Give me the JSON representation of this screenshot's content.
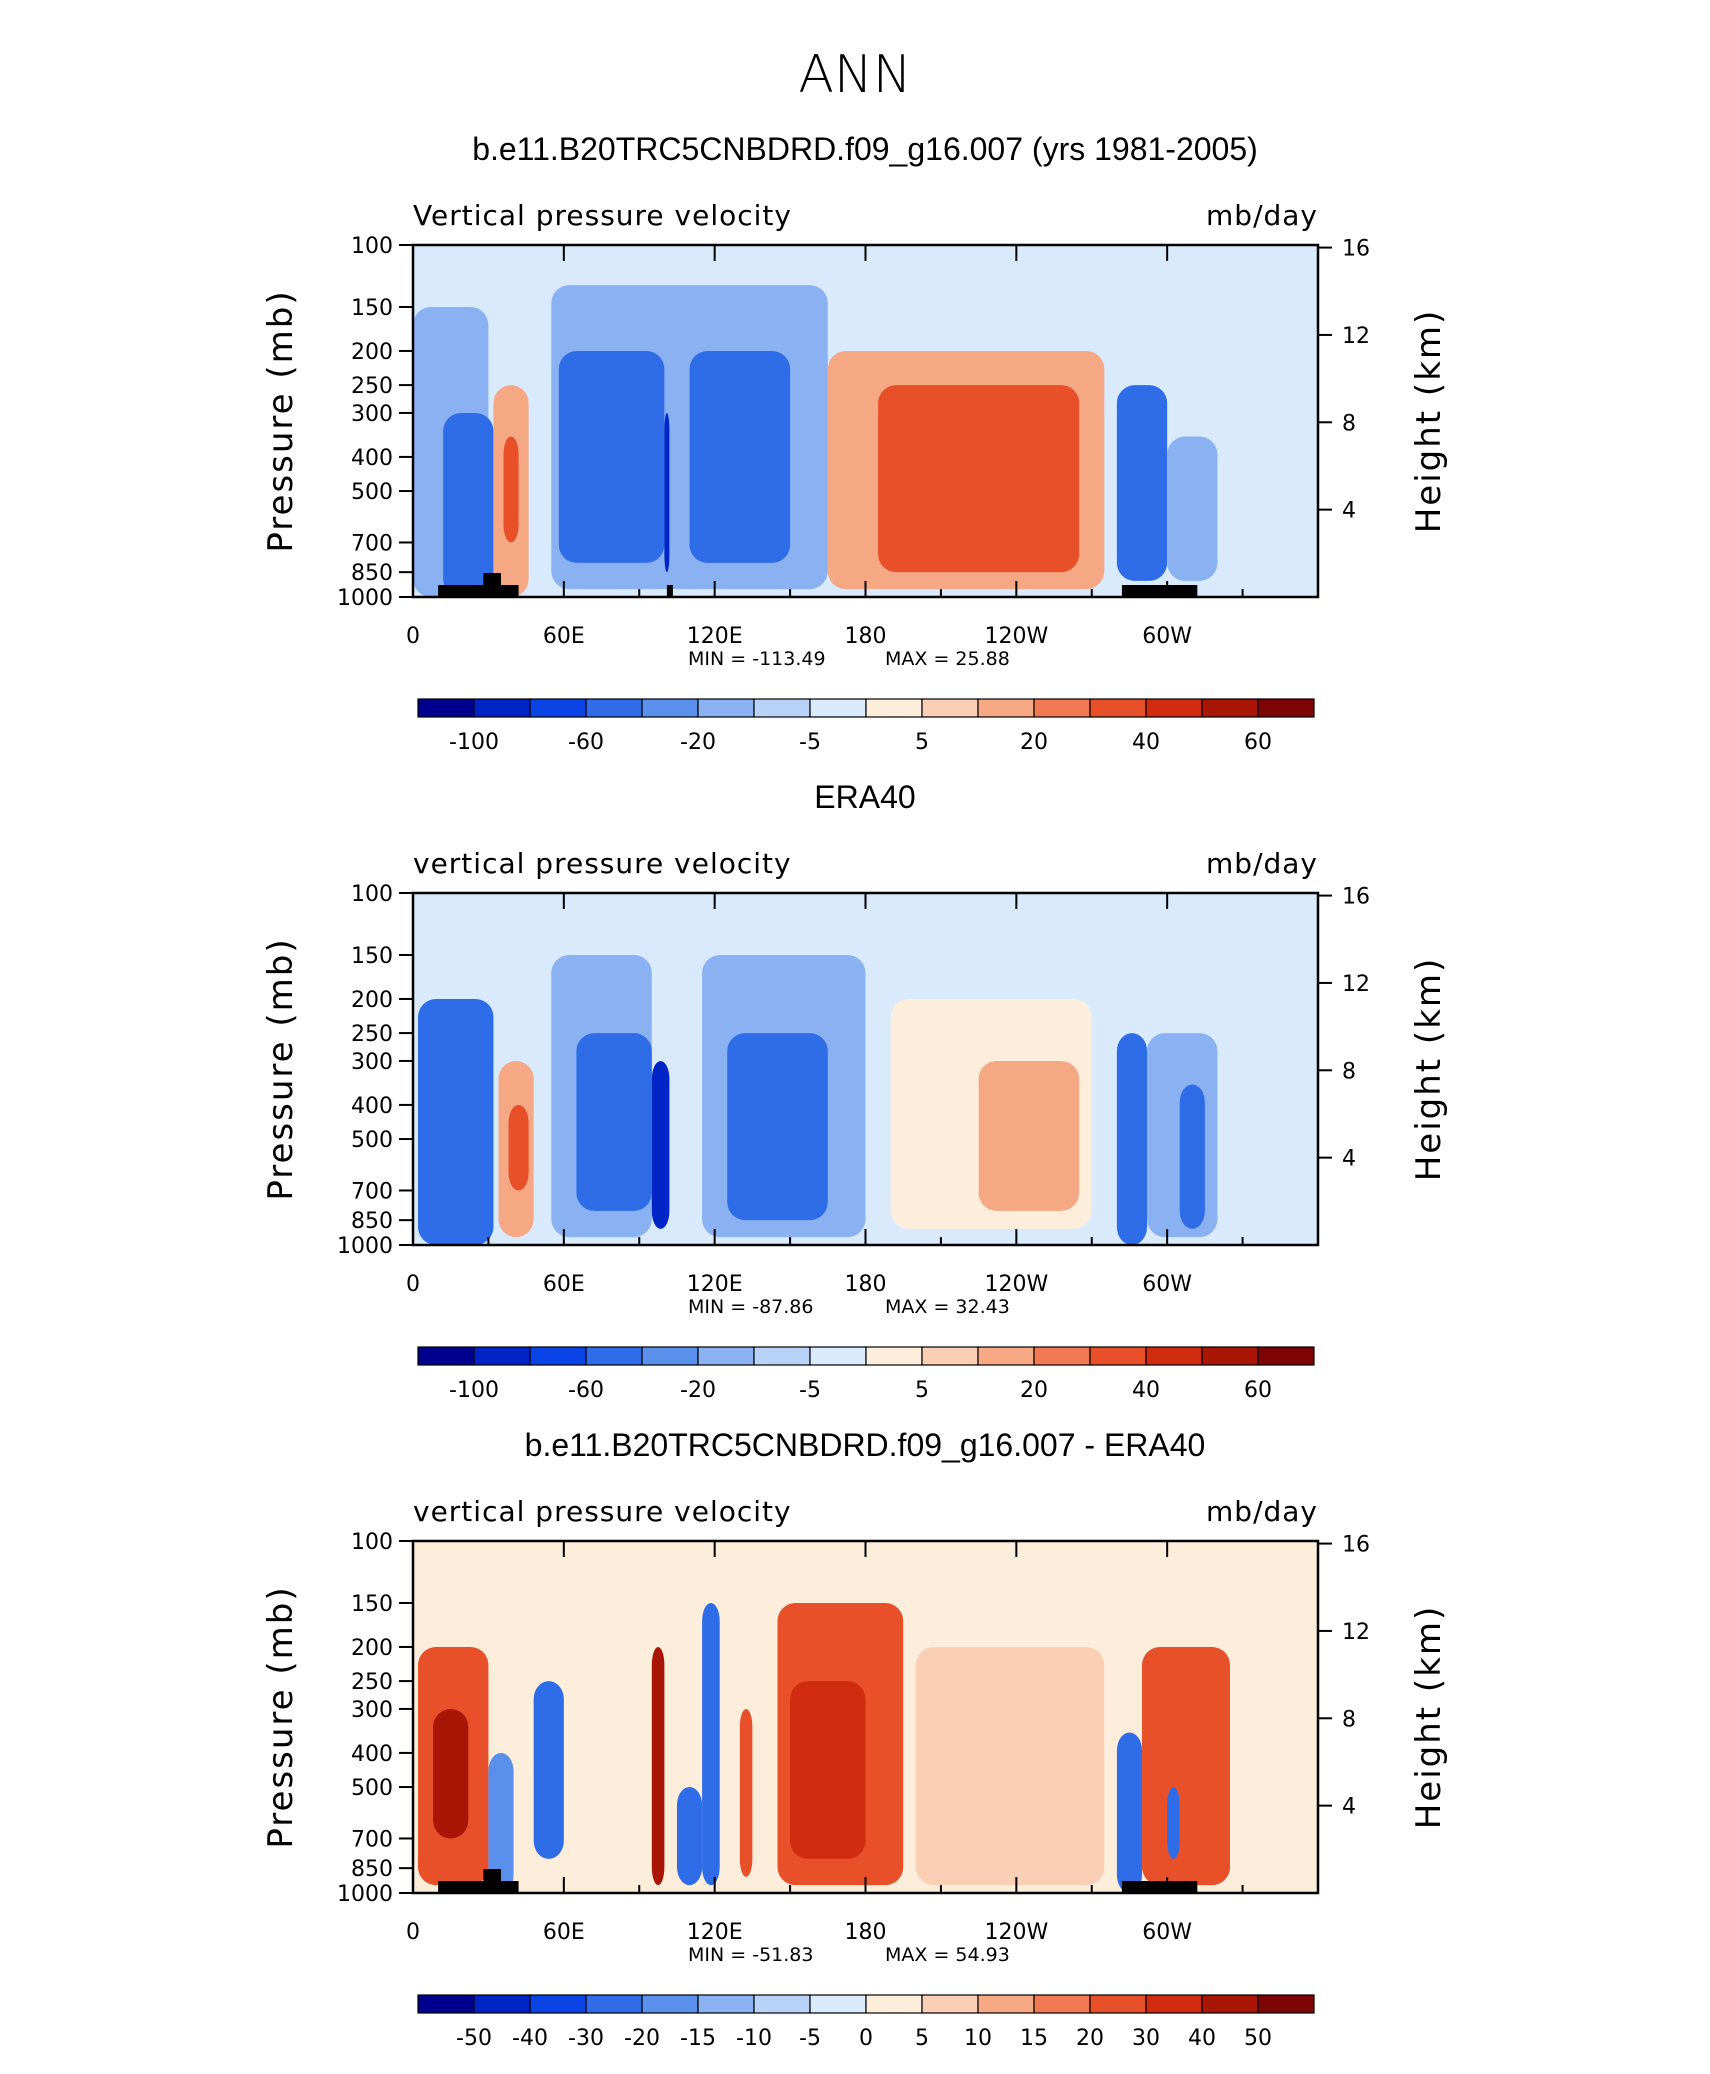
{
  "figure_title": "ANN",
  "colors": {
    "neg": [
      "#00008e",
      "#0024c6",
      "#0a44e6",
      "#2e6ce8",
      "#5a90ec",
      "#8ab2f2",
      "#b8d2f8",
      "#d8eafc"
    ],
    "pos": [
      "#fdeedc",
      "#fbcfb6",
      "#f6a884",
      "#f17a55",
      "#e8502a",
      "#d12c10",
      "#aa1606",
      "#7c0404"
    ]
  },
  "chart_data": [
    {
      "type": "heatmap",
      "title": "b.e11.B20TRC5CNBDRD.f09_g16.007 (yrs 1981-2005)",
      "left_label": "Vertical pressure velocity",
      "right_label": "mb/day",
      "ylabel": "Pressure (mb)",
      "y2label": "Height (km)",
      "yticks": [
        "100",
        "150",
        "200",
        "250",
        "300",
        "400",
        "500",
        "700",
        "850",
        "1000"
      ],
      "y2ticks": [
        "16",
        "12",
        "8",
        "4"
      ],
      "xticks": [
        "0",
        "60E",
        "120E",
        "180",
        "120W",
        "60W"
      ],
      "min_label": "MIN = -113.49",
      "max_label": "MAX =   25.88",
      "colorbar_labels": [
        "-100",
        "-60",
        "-20",
        "-5",
        "5",
        "20",
        "40",
        "60"
      ],
      "cells": [
        {
          "lon": [
            0,
            30
          ],
          "p": [
            150,
            1000
          ],
          "v": -20
        },
        {
          "lon": [
            12,
            32
          ],
          "p": [
            300,
            1000
          ],
          "v": -60
        },
        {
          "lon": [
            32,
            46
          ],
          "p": [
            250,
            1000
          ],
          "v": 20
        },
        {
          "lon": [
            36,
            42
          ],
          "p": [
            350,
            700
          ],
          "v": 40
        },
        {
          "lon": [
            55,
            165
          ],
          "p": [
            130,
            950
          ],
          "v": -20
        },
        {
          "lon": [
            58,
            100
          ],
          "p": [
            200,
            800
          ],
          "v": -60
        },
        {
          "lon": [
            110,
            150
          ],
          "p": [
            200,
            800
          ],
          "v": -60
        },
        {
          "lon": [
            100,
            102
          ],
          "p": [
            300,
            850
          ],
          "v": -100
        },
        {
          "lon": [
            165,
            275
          ],
          "p": [
            200,
            950
          ],
          "v": 20
        },
        {
          "lon": [
            185,
            265
          ],
          "p": [
            250,
            850
          ],
          "v": 40
        },
        {
          "lon": [
            280,
            300
          ],
          "p": [
            250,
            900
          ],
          "v": -60
        },
        {
          "lon": [
            300,
            320
          ],
          "p": [
            350,
            900
          ],
          "v": -20
        },
        {
          "lon": [
            322,
            340
          ],
          "p": [
            300,
            900
          ],
          "v": -5
        }
      ]
    },
    {
      "type": "heatmap",
      "title": "ERA40",
      "left_label": "vertical pressure velocity",
      "right_label": "mb/day",
      "ylabel": "Pressure (mb)",
      "y2label": "Height (km)",
      "yticks": [
        "100",
        "150",
        "200",
        "250",
        "300",
        "400",
        "500",
        "700",
        "850",
        "1000"
      ],
      "y2ticks": [
        "16",
        "12",
        "8",
        "4"
      ],
      "xticks": [
        "0",
        "60E",
        "120E",
        "180",
        "120W",
        "60W"
      ],
      "min_label": "MIN = -87.86",
      "max_label": "MAX =   32.43",
      "colorbar_labels": [
        "-100",
        "-60",
        "-20",
        "-5",
        "5",
        "20",
        "40",
        "60"
      ],
      "cells": [
        {
          "lon": [
            2,
            32
          ],
          "p": [
            200,
            1000
          ],
          "v": -60
        },
        {
          "lon": [
            34,
            48
          ],
          "p": [
            300,
            950
          ],
          "v": 20
        },
        {
          "lon": [
            38,
            46
          ],
          "p": [
            400,
            700
          ],
          "v": 40
        },
        {
          "lon": [
            55,
            95
          ],
          "p": [
            150,
            950
          ],
          "v": -20
        },
        {
          "lon": [
            65,
            95
          ],
          "p": [
            250,
            800
          ],
          "v": -60
        },
        {
          "lon": [
            95,
            102
          ],
          "p": [
            300,
            900
          ],
          "v": -100
        },
        {
          "lon": [
            115,
            180
          ],
          "p": [
            150,
            950
          ],
          "v": -20
        },
        {
          "lon": [
            125,
            165
          ],
          "p": [
            250,
            850
          ],
          "v": -60
        },
        {
          "lon": [
            190,
            270
          ],
          "p": [
            200,
            900
          ],
          "v": 5
        },
        {
          "lon": [
            225,
            265
          ],
          "p": [
            300,
            800
          ],
          "v": 20
        },
        {
          "lon": [
            280,
            292
          ],
          "p": [
            250,
            1000
          ],
          "v": -60
        },
        {
          "lon": [
            292,
            320
          ],
          "p": [
            250,
            950
          ],
          "v": -20
        },
        {
          "lon": [
            305,
            315
          ],
          "p": [
            350,
            900
          ],
          "v": -60
        }
      ]
    },
    {
      "type": "heatmap",
      "title": "b.e11.B20TRC5CNBDRD.f09_g16.007 - ERA40",
      "left_label": "vertical pressure velocity",
      "right_label": "mb/day",
      "ylabel": "Pressure (mb)",
      "y2label": "Height (km)",
      "yticks": [
        "100",
        "150",
        "200",
        "250",
        "300",
        "400",
        "500",
        "700",
        "850",
        "1000"
      ],
      "y2ticks": [
        "16",
        "12",
        "8",
        "4"
      ],
      "xticks": [
        "0",
        "60E",
        "120E",
        "180",
        "120W",
        "60W"
      ],
      "min_label": "MIN = -51.83",
      "max_label": "MAX =   54.93",
      "colorbar_labels": [
        "-50",
        "-40",
        "-30",
        "-20",
        "-15",
        "-10",
        "-5",
        "0",
        "5",
        "10",
        "15",
        "20",
        "30",
        "40",
        "50"
      ],
      "cells": [
        {
          "lon": [
            2,
            30
          ],
          "p": [
            200,
            950
          ],
          "v": 20
        },
        {
          "lon": [
            8,
            22
          ],
          "p": [
            300,
            700
          ],
          "v": 40
        },
        {
          "lon": [
            30,
            40
          ],
          "p": [
            400,
            1000
          ],
          "v": -15
        },
        {
          "lon": [
            48,
            60
          ],
          "p": [
            250,
            800
          ],
          "v": -20
        },
        {
          "lon": [
            95,
            100
          ],
          "p": [
            200,
            950
          ],
          "v": 40
        },
        {
          "lon": [
            105,
            115
          ],
          "p": [
            500,
            950
          ],
          "v": -20
        },
        {
          "lon": [
            115,
            122
          ],
          "p": [
            150,
            950
          ],
          "v": -20
        },
        {
          "lon": [
            130,
            135
          ],
          "p": [
            300,
            900
          ],
          "v": 20
        },
        {
          "lon": [
            145,
            195
          ],
          "p": [
            150,
            950
          ],
          "v": 20
        },
        {
          "lon": [
            150,
            180
          ],
          "p": [
            250,
            800
          ],
          "v": 30
        },
        {
          "lon": [
            200,
            275
          ],
          "p": [
            200,
            950
          ],
          "v": 5
        },
        {
          "lon": [
            280,
            290
          ],
          "p": [
            350,
            1000
          ],
          "v": -20
        },
        {
          "lon": [
            290,
            325
          ],
          "p": [
            200,
            950
          ],
          "v": 20
        },
        {
          "lon": [
            300,
            305
          ],
          "p": [
            500,
            800
          ],
          "v": -20
        }
      ]
    }
  ]
}
